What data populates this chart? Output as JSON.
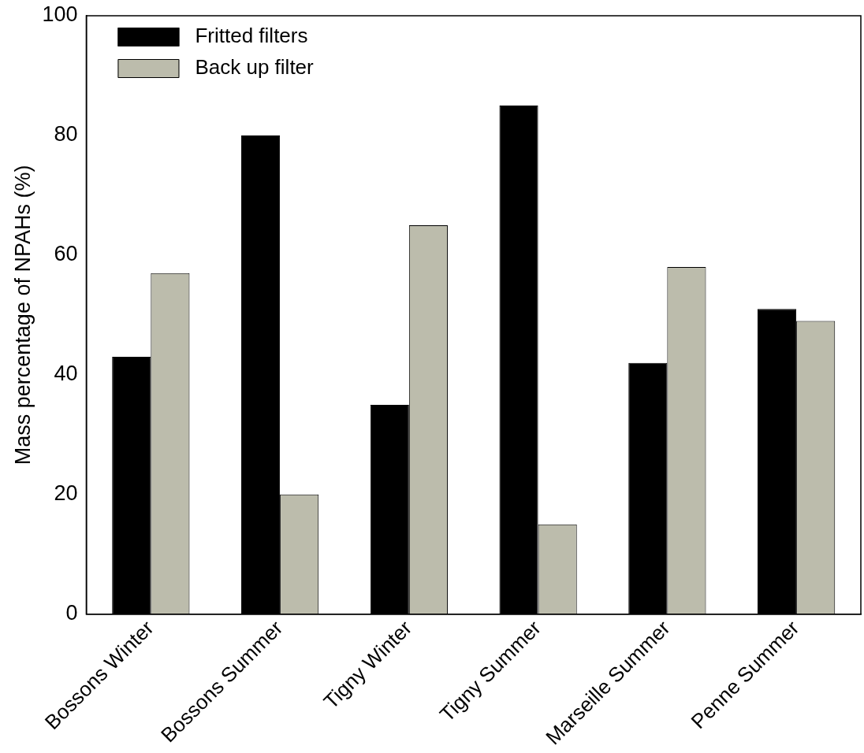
{
  "chart_data": {
    "type": "bar",
    "ylabel": "Mass percentage of NPAHs (%)",
    "categories": [
      "Bossons Winter",
      "Bossons Summer",
      "Tigny Winter",
      "Tigny Summer",
      "Marseille Summer",
      "Penne Summer"
    ],
    "series": [
      {
        "name": "Fritted filters",
        "color": "#000000",
        "values": [
          43,
          80,
          35,
          85,
          42,
          51
        ]
      },
      {
        "name": "Back up filter",
        "color": "#bcbcac",
        "values": [
          57,
          20,
          65,
          15,
          58,
          49
        ]
      }
    ],
    "ylim": [
      0,
      100
    ],
    "yticks": [
      0,
      20,
      40,
      60,
      80,
      100
    ],
    "grid": false,
    "legend": "top left"
  }
}
